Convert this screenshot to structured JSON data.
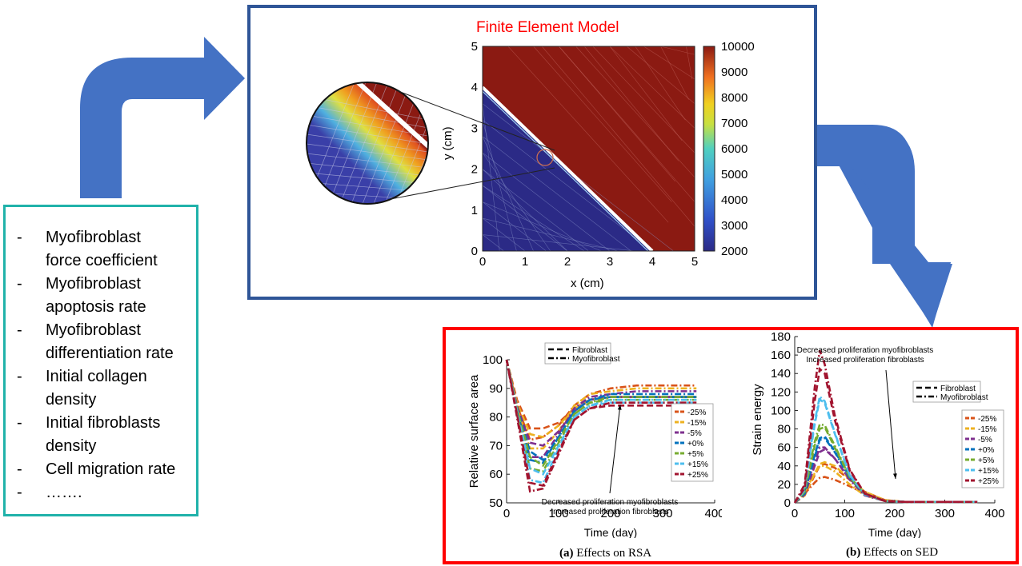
{
  "parameters": {
    "items": [
      {
        "dash": "-",
        "text": "Myofibroblast\nforce coefficient"
      },
      {
        "dash": "-",
        "text": "Myofibroblast\napoptosis rate"
      },
      {
        "dash": "-",
        "text": "Myofibroblast\ndifferentiation rate"
      },
      {
        "dash": "-",
        "text": "Initial collagen\ndensity"
      },
      {
        "dash": "-",
        "text": "Initial fibroblasts\ndensity"
      },
      {
        "dash": "-",
        "text": "Cell migration rate"
      },
      {
        "dash": "-",
        "text": "……."
      }
    ]
  },
  "fem": {
    "title": "Finite Element Model",
    "xlabel": "x (cm)",
    "ylabel": "y (cm)",
    "xticks": [
      "0",
      "1",
      "2",
      "3",
      "4",
      "5"
    ],
    "yticks": [
      "0",
      "1",
      "2",
      "3",
      "4",
      "5"
    ],
    "colorbar_ticks": [
      "10000",
      "9000",
      "8000",
      "7000",
      "6000",
      "5000",
      "4000",
      "3000",
      "2000"
    ]
  },
  "chart_data": [
    {
      "type": "line",
      "caption_tag": "(a)",
      "caption_text": "Effects on RSA",
      "xlabel": "Time (day)",
      "ylabel": "Relative surface area",
      "xlim": [
        0,
        400
      ],
      "ylim": [
        50,
        100
      ],
      "xticks": [
        "0",
        "100",
        "200",
        "300",
        "400"
      ],
      "yticks": [
        "100",
        "90",
        "80",
        "70",
        "60",
        "50"
      ],
      "style_legend": [
        "Fibroblast",
        "Myofibroblast"
      ],
      "annotation": "Decreased proliferation myofibroblasts\nIncreased proliferation fibroblasts",
      "series": [
        {
          "name": "-25%",
          "color": "#d95319",
          "x": [
            0,
            20,
            45,
            70,
            100,
            130,
            160,
            200,
            250,
            300,
            365
          ],
          "fib": [
            100,
            86,
            76,
            76,
            78,
            83,
            86,
            87,
            87,
            87,
            87
          ],
          "myo": [
            100,
            84,
            72,
            73,
            77,
            84,
            88,
            90,
            91,
            91,
            91
          ]
        },
        {
          "name": "-15%",
          "color": "#edb120",
          "x": [
            0,
            20,
            45,
            70,
            100,
            130,
            160,
            200,
            250,
            300,
            365
          ],
          "fib": [
            100,
            85,
            74,
            73,
            77,
            83,
            86,
            87,
            87,
            87,
            87
          ],
          "myo": [
            100,
            83,
            69,
            69,
            75,
            84,
            88,
            89,
            90,
            90,
            90
          ]
        },
        {
          "name": "-5%",
          "color": "#7e2f8e",
          "x": [
            0,
            20,
            45,
            70,
            100,
            130,
            160,
            200,
            250,
            300,
            365
          ],
          "fib": [
            100,
            84,
            71,
            70,
            75,
            82,
            86,
            87,
            87,
            87,
            87
          ],
          "myo": [
            100,
            82,
            66,
            66,
            74,
            83,
            87,
            88,
            89,
            89,
            89
          ]
        },
        {
          "name": "+0%",
          "color": "#0072bd",
          "x": [
            0,
            20,
            45,
            70,
            100,
            130,
            160,
            200,
            250,
            300,
            365
          ],
          "fib": [
            100,
            83,
            68,
            65,
            73,
            82,
            86,
            87,
            87,
            87,
            87
          ],
          "myo": [
            100,
            82,
            65,
            64,
            73,
            82,
            86,
            88,
            88,
            88,
            88
          ]
        },
        {
          "name": "+5%",
          "color": "#77ac30",
          "x": [
            0,
            20,
            45,
            70,
            100,
            130,
            160,
            200,
            250,
            300,
            365
          ],
          "fib": [
            100,
            83,
            66,
            63,
            72,
            81,
            85,
            86,
            86,
            86,
            86
          ],
          "myo": [
            100,
            81,
            62,
            61,
            71,
            81,
            85,
            87,
            87,
            87,
            87
          ]
        },
        {
          "name": "+15%",
          "color": "#4dbeee",
          "x": [
            0,
            20,
            45,
            70,
            100,
            130,
            160,
            200,
            250,
            300,
            365
          ],
          "fib": [
            100,
            82,
            62,
            60,
            70,
            80,
            84,
            85,
            85,
            85,
            85
          ],
          "myo": [
            100,
            80,
            58,
            57,
            69,
            80,
            84,
            86,
            86,
            86,
            86
          ]
        },
        {
          "name": "+25%",
          "color": "#a2142f",
          "x": [
            0,
            20,
            45,
            70,
            100,
            130,
            160,
            200,
            250,
            300,
            365
          ],
          "fib": [
            100,
            81,
            57,
            56,
            68,
            79,
            83,
            84,
            84,
            84,
            84
          ],
          "myo": [
            100,
            80,
            54,
            55,
            67,
            79,
            83,
            85,
            85,
            85,
            85
          ]
        }
      ]
    },
    {
      "type": "line",
      "caption_tag": "(b)",
      "caption_text": "Effects on SED",
      "xlabel": "Time (day)",
      "ylabel": "Strain energy",
      "xlim": [
        0,
        400
      ],
      "ylim": [
        0,
        180
      ],
      "xticks": [
        "0",
        "100",
        "200",
        "300",
        "400"
      ],
      "yticks": [
        "180",
        "160",
        "140",
        "120",
        "100",
        "80",
        "60",
        "40",
        "20",
        "0"
      ],
      "style_legend": [
        "Fibroblast",
        "Myofibroblast"
      ],
      "annotation": "Decreased proliferation myofibroblasts\nIncreased proliferation fibroblasts",
      "series": [
        {
          "name": "-25%",
          "color": "#d95319",
          "x": [
            0,
            20,
            40,
            50,
            60,
            80,
            110,
            140,
            180,
            220,
            365
          ],
          "fib": [
            0,
            8,
            30,
            40,
            42,
            38,
            25,
            12,
            3,
            1,
            1
          ],
          "myo": [
            0,
            10,
            22,
            27,
            28,
            25,
            18,
            10,
            3,
            1,
            1
          ]
        },
        {
          "name": "-15%",
          "color": "#edb120",
          "x": [
            0,
            20,
            40,
            50,
            60,
            80,
            110,
            140,
            180,
            220,
            365
          ],
          "fib": [
            0,
            8,
            32,
            42,
            44,
            40,
            26,
            12,
            3,
            1,
            1
          ],
          "myo": [
            0,
            12,
            32,
            40,
            40,
            34,
            20,
            8,
            2,
            1,
            1
          ]
        },
        {
          "name": "-5%",
          "color": "#7e2f8e",
          "x": [
            0,
            20,
            40,
            50,
            60,
            80,
            110,
            140,
            180,
            220,
            365
          ],
          "fib": [
            0,
            9,
            40,
            55,
            58,
            48,
            26,
            10,
            2,
            1,
            1
          ],
          "myo": [
            0,
            14,
            44,
            60,
            60,
            48,
            25,
            8,
            2,
            1,
            1
          ]
        },
        {
          "name": "+0%",
          "color": "#0072bd",
          "x": [
            0,
            20,
            40,
            50,
            60,
            80,
            110,
            140,
            180,
            220,
            365
          ],
          "fib": [
            0,
            10,
            52,
            70,
            72,
            56,
            28,
            10,
            2,
            1,
            1
          ],
          "myo": [
            0,
            14,
            50,
            68,
            70,
            55,
            27,
            9,
            2,
            1,
            1
          ]
        },
        {
          "name": "+5%",
          "color": "#77ac30",
          "x": [
            0,
            20,
            40,
            50,
            60,
            80,
            110,
            140,
            180,
            220,
            365
          ],
          "fib": [
            0,
            12,
            62,
            80,
            82,
            60,
            28,
            10,
            2,
            1,
            1
          ],
          "myo": [
            0,
            16,
            66,
            85,
            84,
            62,
            28,
            9,
            2,
            1,
            1
          ]
        },
        {
          "name": "+15%",
          "color": "#4dbeee",
          "x": [
            0,
            20,
            40,
            50,
            60,
            80,
            110,
            140,
            180,
            220,
            365
          ],
          "fib": [
            0,
            14,
            85,
            112,
            108,
            75,
            30,
            10,
            2,
            1,
            1
          ],
          "myo": [
            0,
            18,
            88,
            115,
            110,
            76,
            30,
            9,
            2,
            1,
            1
          ]
        },
        {
          "name": "+25%",
          "color": "#a2142f",
          "x": [
            0,
            20,
            40,
            50,
            60,
            80,
            110,
            140,
            180,
            220,
            365
          ],
          "fib": [
            0,
            16,
            110,
            145,
            140,
            90,
            35,
            10,
            2,
            1,
            1
          ],
          "myo": [
            0,
            20,
            125,
            165,
            150,
            95,
            36,
            10,
            2,
            1,
            1
          ]
        }
      ]
    }
  ],
  "colors": {
    "arrow": "#4472c4",
    "param_border": "#20b2aa",
    "fem_border": "#2f5597",
    "results_border": "#ff0000",
    "title_red": "#ff0000",
    "mesh_high": "#8b1a12",
    "mesh_low": "#2b2a86"
  }
}
